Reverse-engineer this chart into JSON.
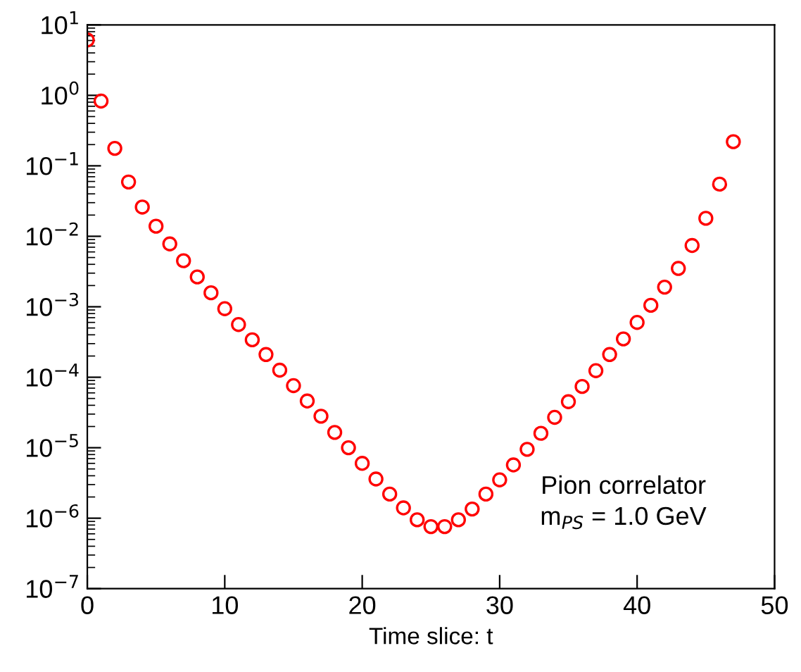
{
  "chart_data": {
    "type": "scatter",
    "xlabel": "Time slice: t",
    "annotations": [
      "Pion correlator",
      "m$_{PS}$ = 1.0 GeV"
    ],
    "x": [
      0,
      1,
      2,
      3,
      4,
      5,
      6,
      7,
      8,
      9,
      10,
      11,
      12,
      13,
      14,
      15,
      16,
      17,
      18,
      19,
      20,
      21,
      22,
      23,
      24,
      25,
      26,
      27,
      28,
      29,
      30,
      31,
      32,
      33,
      34,
      35,
      36,
      37,
      38,
      39,
      40,
      41,
      42,
      43,
      44,
      45,
      46,
      47
    ],
    "series": [
      {
        "color": "#ff0000",
        "values": [
          6.1,
          0.83,
          0.177,
          0.059,
          0.026,
          0.0139,
          0.0078,
          0.0045,
          0.00265,
          0.00158,
          0.00094,
          0.00056,
          0.00034,
          0.00021,
          0.000126,
          7.6e-05,
          4.6e-05,
          2.8e-05,
          1.65e-05,
          1e-05,
          6e-06,
          3.6e-06,
          2.2e-06,
          1.4e-06,
          9.5e-07,
          7.6e-07,
          7.6e-07,
          9.5e-07,
          1.35e-06,
          2.2e-06,
          3.5e-06,
          5.7e-06,
          9.5e-06,
          1.6e-05,
          2.7e-05,
          4.5e-05,
          7.4e-05,
          0.000124,
          0.00021,
          0.00035,
          0.0006,
          0.00105,
          0.0019,
          0.0035,
          0.0074,
          0.018,
          0.055,
          0.22
        ]
      }
    ],
    "log": "y",
    "xlim": [
      0,
      50
    ],
    "xticks": [
      0,
      10,
      20,
      30,
      40,
      50
    ],
    "ylim": [
      1e-07,
      10
    ],
    "yticks": [
      {
        "value": 1e-07,
        "label": "10$^{−7}$"
      },
      {
        "value": 1e-06,
        "label": "10$^{−6}$"
      },
      {
        "value": 1e-05,
        "label": "10$^{−5}$"
      },
      {
        "value": 0.0001,
        "label": "10$^{−4}$"
      },
      {
        "value": 0.001,
        "label": "10$^{−3}$"
      },
      {
        "value": 0.01,
        "label": "10$^{−2}$"
      },
      {
        "value": 0.1,
        "label": "10$^{−1}$"
      },
      {
        "value": 1,
        "label": "10$^{0}$"
      },
      {
        "value": 10,
        "label": "10$^{1}$"
      }
    ],
    "marker": "circle",
    "grid": false,
    "legend": false
  }
}
